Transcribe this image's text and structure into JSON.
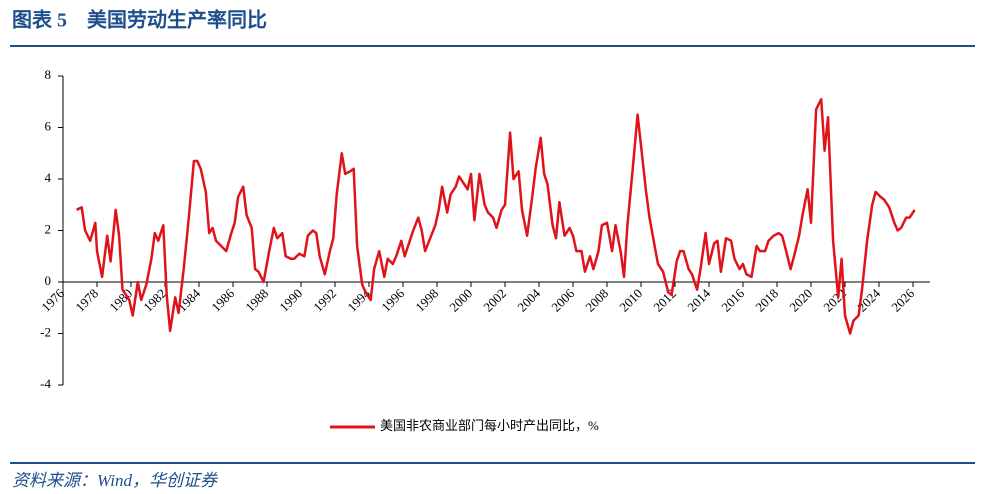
{
  "chart_data": {
    "type": "line",
    "title": "图表 5　美国劳动生产率同比",
    "source": "资料来源：Wind，华创证券",
    "x": [
      1976.8,
      1977.1,
      1977.3,
      1977.6,
      1977.9,
      1978.0,
      1978.3,
      1978.6,
      1978.8,
      1979.1,
      1979.3,
      1979.5,
      1979.9,
      1980.1,
      1980.4,
      1980.6,
      1980.9,
      1981.2,
      1981.4,
      1981.6,
      1981.9,
      1982.1,
      1982.3,
      1982.6,
      1982.8,
      1983.1,
      1983.4,
      1983.7,
      1983.9,
      1984.1,
      1984.4,
      1984.6,
      1984.8,
      1985.0,
      1985.3,
      1985.6,
      1985.9,
      1986.1,
      1986.3,
      1986.6,
      1986.8,
      1987.1,
      1987.3,
      1987.5,
      1987.8,
      1988.1,
      1988.4,
      1988.6,
      1988.9,
      1989.1,
      1989.4,
      1989.6,
      1989.9,
      1990.2,
      1990.4,
      1990.7,
      1990.9,
      1991.1,
      1991.4,
      1991.7,
      1991.9,
      1992.1,
      1992.4,
      1992.6,
      1992.9,
      1993.1,
      1993.3,
      1993.6,
      1993.8,
      1994.1,
      1994.3,
      1994.6,
      1994.9,
      1995.1,
      1995.4,
      1995.6,
      1995.9,
      1996.1,
      1996.4,
      1996.6,
      1996.9,
      1997.1,
      1997.3,
      1997.6,
      1997.9,
      1998.1,
      1998.3,
      1998.6,
      1998.8,
      1999.1,
      1999.3,
      1999.5,
      1999.8,
      2000.0,
      2000.2,
      2000.5,
      2000.8,
      2001.0,
      2001.3,
      2001.5,
      2001.8,
      2002.0,
      2002.3,
      2002.5,
      2002.8,
      2003.0,
      2003.3,
      2003.6,
      2003.8,
      2004.1,
      2004.3,
      2004.5,
      2004.8,
      2005.0,
      2005.2,
      2005.5,
      2005.8,
      2006.0,
      2006.2,
      2006.5,
      2006.7,
      2007.0,
      2007.2,
      2007.5,
      2007.7,
      2008.0,
      2008.3,
      2008.5,
      2008.8,
      2009.0,
      2009.2,
      2009.5,
      2009.8,
      2010.0,
      2010.3,
      2010.5,
      2010.8,
      2011.0,
      2011.3,
      2011.6,
      2011.8,
      2012.1,
      2012.3,
      2012.5,
      2012.8,
      2013.0,
      2013.3,
      2013.5,
      2013.8,
      2014.0,
      2014.3,
      2014.5,
      2014.7,
      2015.0,
      2015.3,
      2015.5,
      2015.8,
      2016.0,
      2016.2,
      2016.5,
      2016.8,
      2017.0,
      2017.3,
      2017.5,
      2017.8,
      2018.1,
      2018.3,
      2018.5,
      2018.8,
      2019.0,
      2019.3,
      2019.5,
      2019.8,
      2020.0,
      2020.3,
      2020.6,
      2020.8,
      2021.0,
      2021.3,
      2021.6,
      2021.8,
      2022.0,
      2022.3,
      2022.5,
      2022.8,
      2023.0,
      2023.3,
      2023.6,
      2023.8,
      2024.1,
      2024.3,
      2024.6,
      2024.9,
      2025.1,
      2025.3,
      2025.6,
      2025.8,
      2026.1
    ],
    "series": [
      {
        "name": "美国非农商业部门每小时产出同比，%",
        "color": "#e0131b",
        "values": [
          2.8,
          2.9,
          2.0,
          1.6,
          2.3,
          1.2,
          0.2,
          1.8,
          0.8,
          2.8,
          1.8,
          -0.3,
          -0.7,
          -1.3,
          0.0,
          -0.7,
          -0.1,
          0.9,
          1.9,
          1.6,
          2.2,
          -0.5,
          -1.9,
          -0.6,
          -1.2,
          0.5,
          2.5,
          4.7,
          4.7,
          4.4,
          3.5,
          1.9,
          2.1,
          1.6,
          1.4,
          1.2,
          1.9,
          2.3,
          3.3,
          3.7,
          2.6,
          2.1,
          0.5,
          0.4,
          0.0,
          1.1,
          2.1,
          1.7,
          1.9,
          1.0,
          0.9,
          0.9,
          1.1,
          1.0,
          1.8,
          2.0,
          1.9,
          1.0,
          0.3,
          1.2,
          1.7,
          3.4,
          5.0,
          4.2,
          4.3,
          4.4,
          1.4,
          -0.1,
          -0.4,
          -0.7,
          0.5,
          1.2,
          0.2,
          0.9,
          0.7,
          1.0,
          1.6,
          1.0,
          1.6,
          2.0,
          2.5,
          2.0,
          1.2,
          1.7,
          2.2,
          2.8,
          3.7,
          2.7,
          3.4,
          3.7,
          4.1,
          3.9,
          3.6,
          4.2,
          2.4,
          4.2,
          3.0,
          2.7,
          2.5,
          2.1,
          2.8,
          3.0,
          5.8,
          4.0,
          4.3,
          2.8,
          1.8,
          3.3,
          4.4,
          5.6,
          4.2,
          3.8,
          2.2,
          1.7,
          3.1,
          1.8,
          2.1,
          1.8,
          1.2,
          1.2,
          0.4,
          1.0,
          0.5,
          1.2,
          2.2,
          2.3,
          1.2,
          2.2,
          1.2,
          0.2,
          2.2,
          4.3,
          6.5,
          5.3,
          3.5,
          2.5,
          1.4,
          0.7,
          0.4,
          -0.4,
          -0.5,
          0.8,
          1.2,
          1.2,
          0.5,
          0.3,
          -0.3,
          0.5,
          1.9,
          0.7,
          1.5,
          1.6,
          0.4,
          1.7,
          1.6,
          0.9,
          0.5,
          0.7,
          0.3,
          0.2,
          1.4,
          1.2,
          1.2,
          1.6,
          1.8,
          1.9,
          1.8,
          1.3,
          0.5,
          1.0,
          1.8,
          2.6,
          3.6,
          2.3,
          6.7,
          7.1,
          5.1,
          6.4,
          1.6,
          -0.6,
          0.9,
          -1.3,
          -2.0,
          -1.5,
          -1.3,
          -0.3,
          1.6,
          3.0,
          3.5,
          3.3,
          3.2,
          2.9,
          2.3,
          2.0,
          2.1,
          2.5,
          2.5,
          2.8
        ]
      }
    ],
    "xlim": [
      1976,
      2027
    ],
    "xticks": [
      1976,
      1978,
      1980,
      1982,
      1984,
      1986,
      1988,
      1990,
      1992,
      1994,
      1996,
      1998,
      2000,
      2002,
      2004,
      2006,
      2008,
      2010,
      2012,
      2014,
      2016,
      2018,
      2020,
      2022,
      2024,
      2026
    ],
    "ylim": [
      -4,
      8
    ],
    "yticks": [
      -4,
      -2,
      0,
      2,
      4,
      6,
      8
    ],
    "grid": false
  }
}
